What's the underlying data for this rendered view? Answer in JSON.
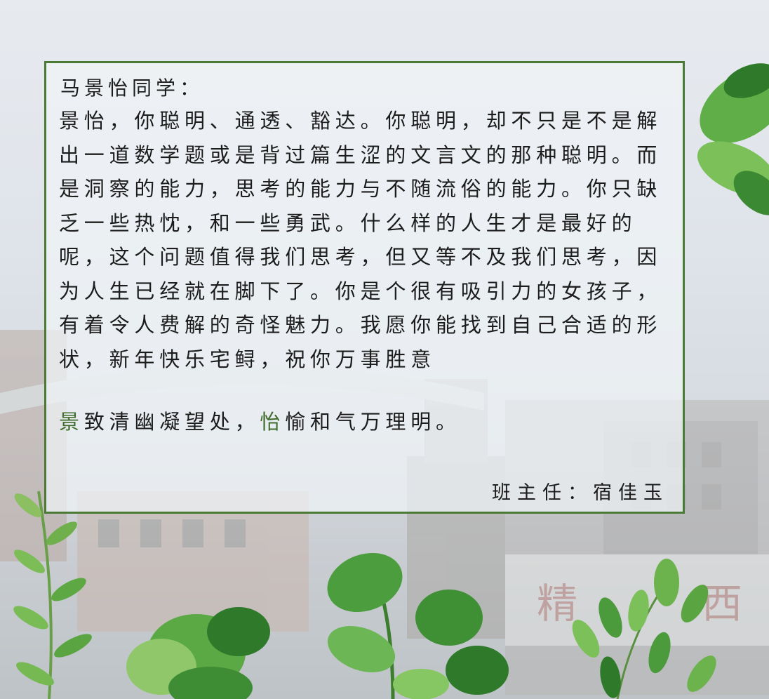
{
  "letter": {
    "salutation": "马景怡同学：",
    "body": "景怡，你聪明、通透、豁达。你聪明，却不只是不是解出一道数学题或是背过篇生涩的文言文的那种聪明。而是洞察的能力，思考的能力与不随流俗的能力。你只缺乏一些热忱，和一些勇武。什么样的人生才是最好的呢，这个问题值得我们思考，但又等不及我们思考，因为人生已经就在脚下了。你是个很有吸引力的女孩子，有着令人费解的奇怪魅力。我愿你能找到自己合适的形状，新年快乐宅鲟，祝你万事胜意",
    "poem": {
      "line1_accent": "景",
      "line1_rest": "致清幽凝望处，",
      "line2_accent": "怡",
      "line2_rest": "愉和气万理明。"
    },
    "signature": "班主任：宿佳玉"
  },
  "colors": {
    "border": "#4a7a36",
    "accent_text": "#3f6b2d",
    "leaf_dark": "#2f7a2a",
    "leaf_light": "#7cc05a"
  },
  "decoration_icons": [
    "school-gate-building",
    "leaf-cluster-top-right",
    "leaf-cluster-bottom",
    "fern-left"
  ]
}
